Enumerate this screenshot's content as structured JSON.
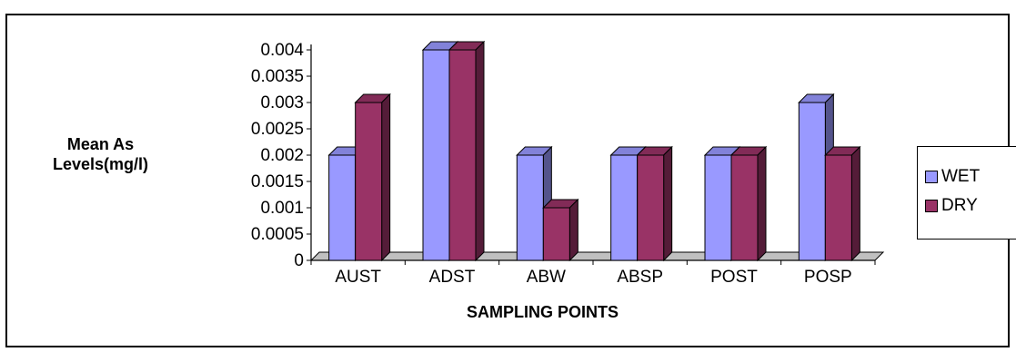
{
  "chart_data": {
    "type": "bar",
    "categories": [
      "AUST",
      "ADST",
      "ABW",
      "ABSP",
      "POST",
      "POSP"
    ],
    "series": [
      {
        "name": "WET",
        "values": [
          0.002,
          0.004,
          0.002,
          0.002,
          0.002,
          0.003
        ],
        "color": "#9999ff"
      },
      {
        "name": "DRY",
        "values": [
          0.003,
          0.004,
          0.001,
          0.002,
          0.002,
          0.002
        ],
        "color": "#993366"
      }
    ],
    "yticks": [
      "0",
      "0.0005",
      "0.001",
      "0.0015",
      "0.002",
      "0.0025",
      "0.003",
      "0.0035",
      "0.004"
    ],
    "ylim": [
      0,
      0.004
    ],
    "ylabel_line1": "Mean As",
    "ylabel_line2": "Levels(mg/l)",
    "xlabel": "SAMPLING POINTS",
    "legend_position": "right",
    "grid": false,
    "style": "3d-column"
  }
}
